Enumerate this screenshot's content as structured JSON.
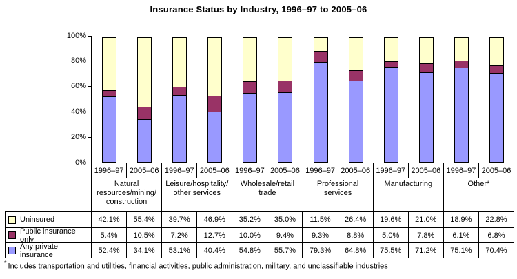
{
  "title": "Insurance Status by Industry, 1996–97 to 2005–06",
  "footnote": {
    "marker": "*",
    "text": "Includes transportation and utilities, financial activities, public administration, military, and unclassifiable industries"
  },
  "chart_data": {
    "type": "bar",
    "stacked": true,
    "title": "Insurance Status by Industry, 1996–97 to 2005–06",
    "xlabel": "",
    "ylabel": "",
    "ylim": [
      0,
      100
    ],
    "grid": false,
    "y_ticks": [
      "0%",
      "20%",
      "40%",
      "60%",
      "80%",
      "100%"
    ],
    "group_categories": [
      "1996–97",
      "2005–06"
    ],
    "groups": [
      {
        "label": "Natural resources/mining/construction",
        "label_lines": [
          "Natural",
          "resources/mining/",
          "construction"
        ]
      },
      {
        "label": "Leisure/hospitality/other services",
        "label_lines": [
          "Leisure/hospitality/",
          "other services"
        ]
      },
      {
        "label": "Wholesale/retail trade",
        "label_lines": [
          "Wholesale/retail",
          "trade"
        ]
      },
      {
        "label": "Professional services",
        "label_lines": [
          "Professional",
          "services"
        ]
      },
      {
        "label": "Manufacturing",
        "label_lines": [
          "Manufacturing"
        ]
      },
      {
        "label": "Other*",
        "label_lines": [
          "Other*"
        ]
      }
    ],
    "series": [
      {
        "name": "Uninsured",
        "color": "#FFFFCC",
        "values": [
          42.1,
          55.4,
          39.7,
          46.9,
          35.2,
          35.0,
          11.5,
          26.4,
          19.6,
          21.0,
          18.9,
          22.8
        ]
      },
      {
        "name": "Public insurance only",
        "color": "#993366",
        "values": [
          5.4,
          10.5,
          7.2,
          12.7,
          10.0,
          9.4,
          9.3,
          8.8,
          5.0,
          7.8,
          6.1,
          6.8
        ]
      },
      {
        "name": "Any private insurance",
        "color": "#9999FF",
        "values": [
          52.4,
          34.1,
          53.1,
          40.4,
          54.8,
          55.7,
          79.3,
          64.8,
          75.5,
          71.2,
          75.1,
          70.4
        ]
      }
    ],
    "stack_order_bottom_to_top": [
      "Any private insurance",
      "Public insurance only",
      "Uninsured"
    ],
    "value_format": "percent_1dp",
    "legend_position": "table-left"
  }
}
